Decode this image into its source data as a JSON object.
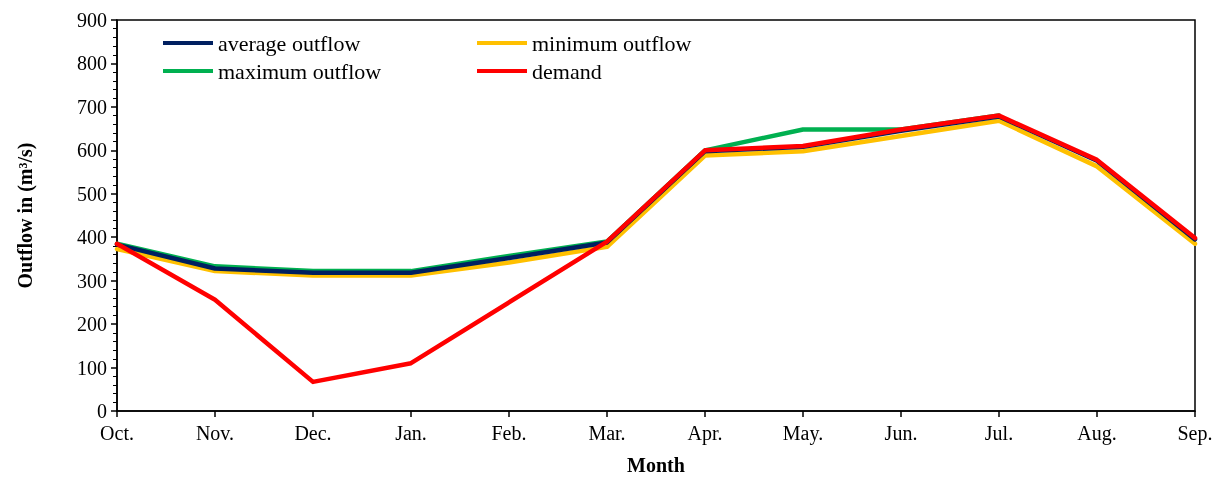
{
  "chart_data": {
    "type": "line",
    "xlabel": "Month",
    "ylabel": "Outflow in (m³/s)",
    "categories": [
      "Oct.",
      "Nov.",
      "Dec.",
      "Jan.",
      "Feb.",
      "Mar.",
      "Apr.",
      "May.",
      "Jun.",
      "Jul.",
      "Aug.",
      "Sep."
    ],
    "series": [
      {
        "name": "average outflow",
        "color": "#002060",
        "values": [
          383,
          328,
          318,
          318,
          352,
          388,
          598,
          608,
          645,
          678,
          576,
          395
        ]
      },
      {
        "name": "minimum outflow",
        "color": "#ffc000",
        "values": [
          373,
          322,
          312,
          312,
          342,
          378,
          588,
          598,
          633,
          668,
          563,
          385
        ]
      },
      {
        "name": "maximum outflow",
        "color": "#00b050",
        "values": [
          385,
          333,
          322,
          322,
          357,
          390,
          600,
          648,
          648,
          680,
          null,
          null
        ]
      },
      {
        "name": "demand",
        "color": "#ff0000",
        "values": [
          385,
          256,
          67,
          110,
          250,
          390,
          600,
          610,
          648,
          680,
          578,
          398
        ]
      }
    ],
    "ylim": [
      0,
      900
    ],
    "yticks": [
      0,
      100,
      200,
      300,
      400,
      500,
      600,
      700,
      800,
      900
    ],
    "grid": false,
    "legend": "top left",
    "marker": "none",
    "line_style": "solid"
  }
}
